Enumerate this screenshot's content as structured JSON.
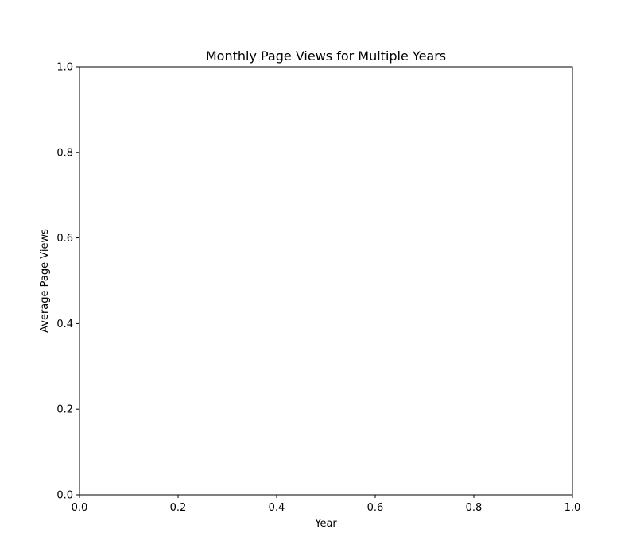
{
  "chart_data": {
    "type": "line",
    "title": "Monthly Page Views for Multiple Years",
    "xlabel": "Year",
    "ylabel": "Average Page Views",
    "xlim": [
      0.0,
      1.0
    ],
    "ylim": [
      0.0,
      1.0
    ],
    "x_ticks": [
      "0.0",
      "0.2",
      "0.4",
      "0.6",
      "0.8",
      "1.0"
    ],
    "y_ticks": [
      "0.0",
      "0.2",
      "0.4",
      "0.6",
      "0.8",
      "1.0"
    ],
    "series": [],
    "grid": false,
    "legend": "none"
  }
}
